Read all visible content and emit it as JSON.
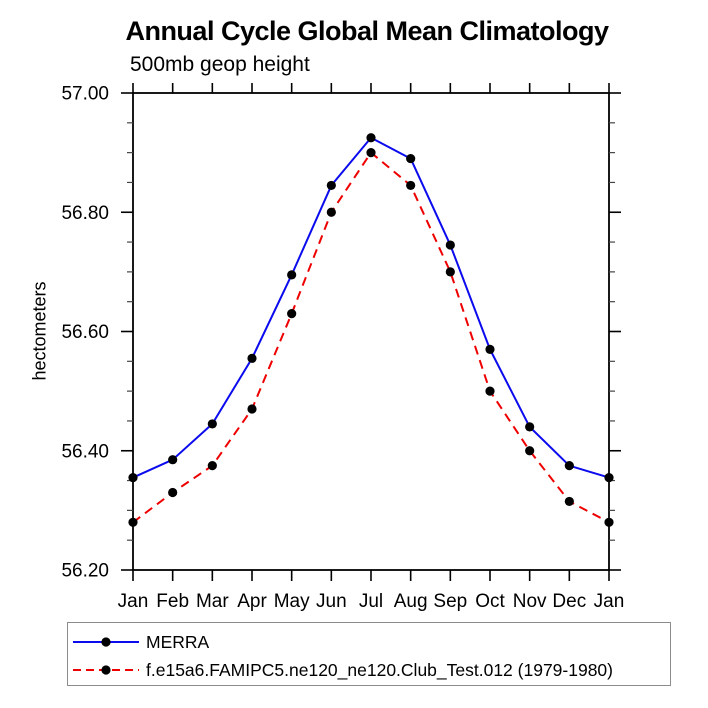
{
  "chart_data": {
    "type": "line",
    "title": "Annual Cycle Global Mean Climatology",
    "subtitle": "500mb geop height",
    "ylabel": "hectometers",
    "categories": [
      "Jan",
      "Feb",
      "Mar",
      "Apr",
      "May",
      "Jun",
      "Jul",
      "Aug",
      "Sep",
      "Oct",
      "Nov",
      "Dec",
      "Jan"
    ],
    "ylim": [
      56.2,
      57.0
    ],
    "ytick_values": [
      57.0,
      56.8,
      56.6,
      56.4,
      56.2
    ],
    "ytick_labels": [
      "57.00",
      "56.80",
      "56.60",
      "56.40",
      "56.20"
    ],
    "minor_tick_step": 0.05,
    "grid": false,
    "legend_position": "bottom-left",
    "marker": {
      "shape": "circle",
      "color": "#000000"
    },
    "series": [
      {
        "name": "MERRA",
        "color": "#0b0bee",
        "line_style": "solid",
        "values": [
          56.355,
          56.385,
          56.445,
          56.555,
          56.695,
          56.845,
          56.925,
          56.89,
          56.745,
          56.57,
          56.44,
          56.375,
          56.355
        ]
      },
      {
        "name": "f.e15a6.FAMIPC5.ne120_ne120.Club_Test.012 (1979-1980)",
        "color": "#ee0000",
        "line_style": "dashed",
        "values": [
          56.28,
          56.33,
          56.375,
          56.47,
          56.63,
          56.8,
          56.9,
          56.845,
          56.7,
          56.5,
          56.4,
          56.315,
          56.28
        ]
      }
    ]
  }
}
